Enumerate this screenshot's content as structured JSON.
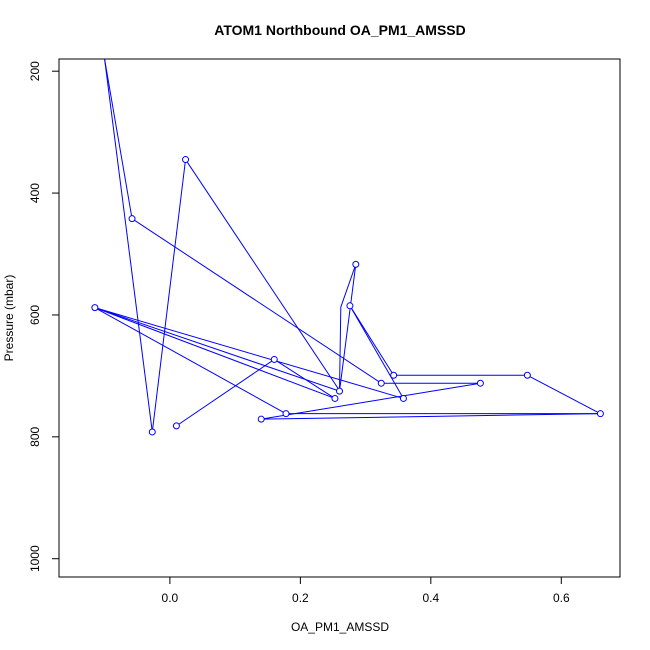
{
  "chart_data": {
    "type": "line",
    "title": "ATOM1 Northbound OA_PM1_AMSSD",
    "xlabel": "OA_PM1_AMSSD",
    "ylabel": "Pressure (mbar)",
    "xlim": [
      -0.17,
      0.69
    ],
    "ylim": [
      1030,
      180
    ],
    "y_reversed": true,
    "x_ticks": [
      0.0,
      0.2,
      0.4,
      0.6
    ],
    "x_tick_labels": [
      "0.0",
      "0.2",
      "0.4",
      "0.6"
    ],
    "y_ticks": [
      200,
      400,
      600,
      800,
      1000
    ],
    "y_tick_labels": [
      "200",
      "400",
      "600",
      "800",
      "1000"
    ],
    "grid": false,
    "color": "#0000ff",
    "series": [
      {
        "points": [
          {
            "x": 0.01,
            "y": 782
          },
          {
            "x": 0.16,
            "y": 673
          },
          {
            "x": 0.253,
            "y": 737
          },
          {
            "x": -0.115,
            "y": 588
          },
          {
            "x": 0.178,
            "y": 762
          },
          {
            "x": 0.66,
            "y": 762
          },
          {
            "x": 0.548,
            "y": 699
          },
          {
            "x": 0.343,
            "y": 699
          },
          {
            "x": 0.276,
            "y": 585
          },
          {
            "x": 0.358,
            "y": 737
          },
          {
            "x": -0.115,
            "y": 588
          },
          {
            "x": 0.26,
            "y": 725
          },
          {
            "x": 0.285,
            "y": 517
          },
          {
            "x": 0.262,
            "y": 587
          },
          {
            "x": 0.26,
            "y": 724
          },
          {
            "x": 0.024,
            "y": 345
          },
          {
            "x": -0.027,
            "y": 792
          },
          {
            "x": -0.1,
            "y": 181
          },
          {
            "x": -0.058,
            "y": 442
          },
          {
            "x": 0.324,
            "y": 712
          },
          {
            "x": 0.476,
            "y": 712
          },
          {
            "x": 0.14,
            "y": 771
          },
          {
            "x": 0.66,
            "y": 762
          }
        ],
        "markers_at": [
          {
            "x": 0.01,
            "y": 782
          },
          {
            "x": 0.16,
            "y": 673
          },
          {
            "x": 0.253,
            "y": 737
          },
          {
            "x": -0.115,
            "y": 588
          },
          {
            "x": 0.178,
            "y": 762
          },
          {
            "x": 0.66,
            "y": 762
          },
          {
            "x": 0.548,
            "y": 699
          },
          {
            "x": 0.343,
            "y": 699
          },
          {
            "x": 0.276,
            "y": 585
          },
          {
            "x": 0.358,
            "y": 737
          },
          {
            "x": 0.26,
            "y": 725
          },
          {
            "x": 0.285,
            "y": 517
          },
          {
            "x": 0.024,
            "y": 345
          },
          {
            "x": -0.027,
            "y": 792
          },
          {
            "x": -0.058,
            "y": 442
          },
          {
            "x": 0.324,
            "y": 712
          },
          {
            "x": 0.476,
            "y": 712
          },
          {
            "x": 0.14,
            "y": 771
          }
        ]
      }
    ]
  }
}
